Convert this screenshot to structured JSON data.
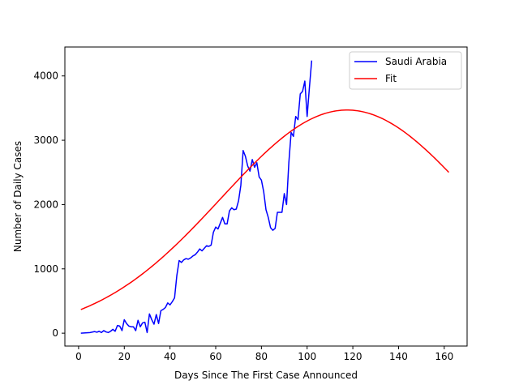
{
  "chart_data": {
    "type": "line",
    "xlabel": "Days Since The First Case Announced",
    "ylabel": "Number of Daily Cases",
    "xlim": [
      -6,
      170
    ],
    "ylim": [
      -200,
      4450
    ],
    "xticks": [
      0,
      20,
      40,
      60,
      80,
      100,
      120,
      140,
      160
    ],
    "yticks": [
      0,
      1000,
      2000,
      3000,
      4000
    ],
    "grid": false,
    "legend_position": "top-right",
    "series": [
      {
        "name": "Saudi Arabia",
        "color": "#0000ff",
        "x": [
          1,
          3,
          5,
          7,
          8,
          9,
          10,
          11,
          12,
          13,
          14,
          15,
          16,
          17,
          18,
          19,
          20,
          21,
          22,
          23,
          24,
          25,
          26,
          27,
          28,
          29,
          30,
          31,
          32,
          33,
          34,
          35,
          36,
          37,
          38,
          39,
          40,
          41,
          42,
          43,
          44,
          45,
          46,
          47,
          48,
          49,
          50,
          51,
          52,
          53,
          54,
          55,
          56,
          57,
          58,
          59,
          60,
          61,
          62,
          63,
          64,
          65,
          66,
          67,
          68,
          69,
          70,
          71,
          72,
          73,
          74,
          75,
          76,
          77,
          78,
          79,
          80,
          81,
          82,
          83,
          84,
          85,
          86,
          87,
          88,
          89,
          90,
          91,
          92,
          93,
          94,
          95,
          96,
          97,
          98,
          99,
          100,
          101,
          102
        ],
        "y": [
          0,
          5,
          10,
          25,
          15,
          30,
          10,
          40,
          20,
          10,
          30,
          60,
          30,
          120,
          110,
          40,
          210,
          150,
          110,
          100,
          100,
          40,
          200,
          100,
          160,
          170,
          10,
          300,
          210,
          140,
          290,
          150,
          350,
          370,
          400,
          470,
          440,
          490,
          550,
          900,
          1130,
          1100,
          1140,
          1160,
          1150,
          1170,
          1200,
          1220,
          1260,
          1310,
          1280,
          1320,
          1360,
          1350,
          1370,
          1570,
          1650,
          1620,
          1710,
          1800,
          1700,
          1700,
          1900,
          1950,
          1920,
          1930,
          2060,
          2300,
          2840,
          2750,
          2600,
          2520,
          2700,
          2580,
          2650,
          2430,
          2380,
          2200,
          1920,
          1800,
          1640,
          1600,
          1630,
          1880,
          1880,
          1880,
          2170,
          2000,
          2650,
          3120,
          3060,
          3370,
          3320,
          3720,
          3760,
          3920,
          3370,
          3820,
          4240
        ]
      },
      {
        "name": "Fit",
        "color": "#ff0000",
        "fit": {
          "a": 3470,
          "b": 117.5,
          "c": 55,
          "x_start": 1,
          "x_end": 162
        }
      }
    ]
  }
}
